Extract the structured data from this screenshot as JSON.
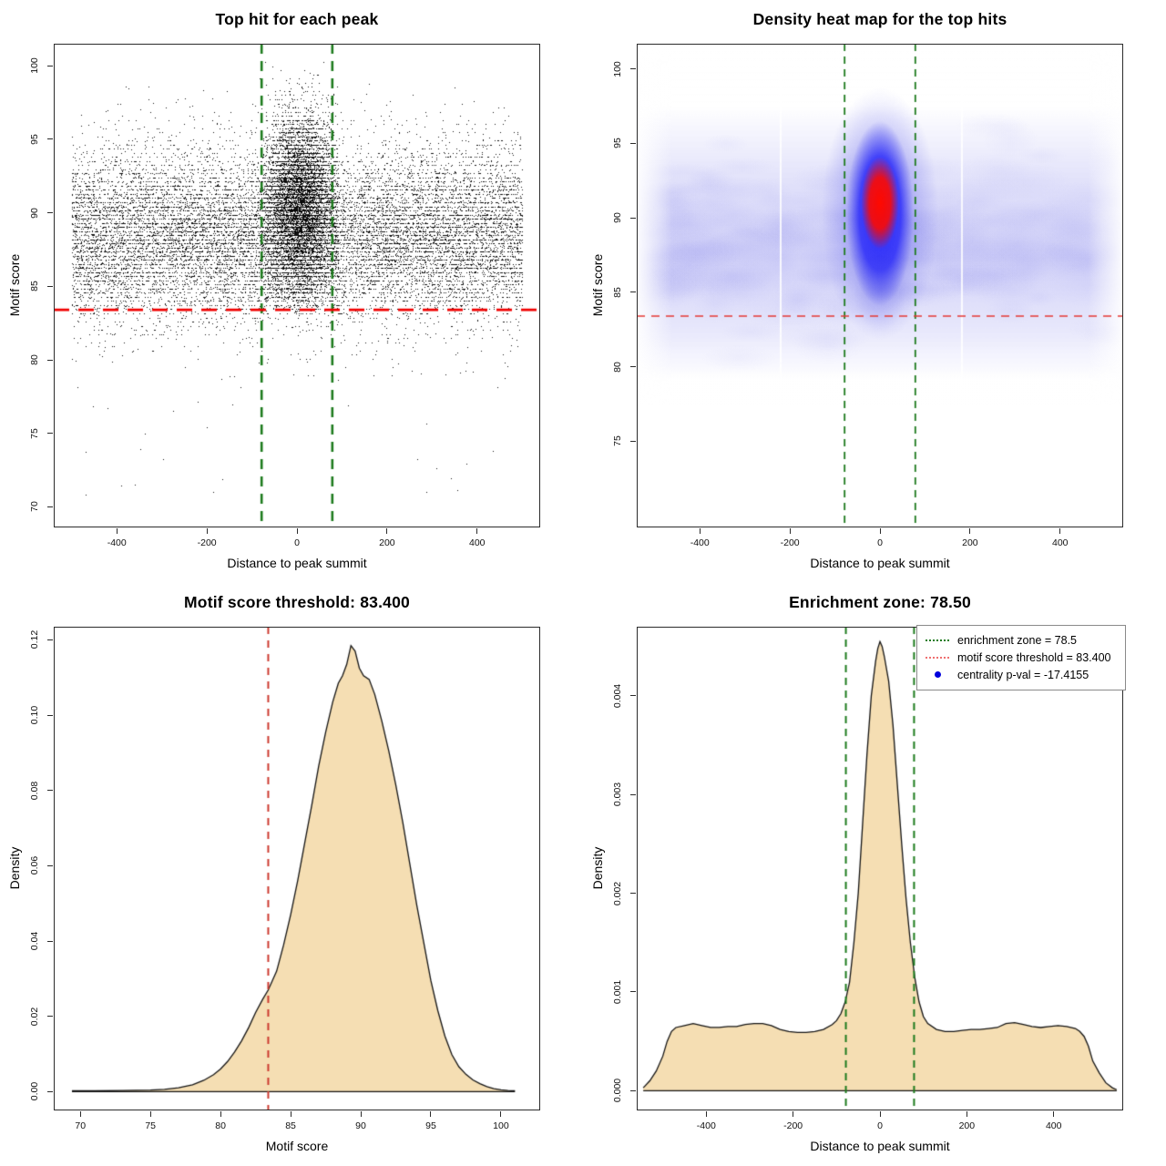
{
  "figure": {
    "background": "#ffffff",
    "frame_color": "#2b2b2b"
  },
  "colors": {
    "enrichment_green": "#1e7b1e",
    "threshold_red_bold": "#f00000",
    "threshold_red_soft": "#cc3a30",
    "heatmap_red_line": "#e53935",
    "density_fill_wheat": "#f5deb3",
    "density_stroke": "#141414",
    "scatter_point": "#000000",
    "heat_core_red": "#ff0a00",
    "heat_blue": "#2323fa",
    "legend_green": "#1e7b1e",
    "legend_salmon": "#ef7070",
    "legend_blue": "#0000dd"
  },
  "chart_data": [
    {
      "id": "top-hit-scatter",
      "type": "scatter",
      "title": "Top hit for each peak",
      "xlabel": "Distance to peak summit",
      "ylabel": "Motif score",
      "xlim": [
        -540,
        540
      ],
      "ylim": [
        68.6,
        101.5
      ],
      "xticks": {
        "values": [
          -400,
          -200,
          0,
          200,
          400
        ],
        "labels": [
          "-400",
          "-200",
          "0",
          "200",
          "400"
        ]
      },
      "yticks": {
        "values": [
          70,
          75,
          80,
          85,
          90,
          95,
          100
        ],
        "labels": [
          "70",
          "75",
          "80",
          "85",
          "90",
          "95",
          "100"
        ]
      },
      "grid": false,
      "hlines": [
        {
          "value": 83.4,
          "color": "#f00000",
          "width": 2.8,
          "dash": [
            17,
            10
          ],
          "meaning": "motif score threshold"
        }
      ],
      "vlines": [
        {
          "value": -78.5,
          "color": "#1e7b1e",
          "width": 2.6,
          "dash": [
            11,
            8
          ],
          "meaning": "enrichment zone"
        },
        {
          "value": 78.5,
          "color": "#1e7b1e",
          "width": 2.6,
          "dash": [
            11,
            8
          ],
          "meaning": "enrichment zone"
        }
      ],
      "point_cloud": {
        "background": {
          "n": 15500,
          "x_uniform": [
            -500,
            500
          ],
          "y_mean": 88.35,
          "y_sd": 3.05
        },
        "central_cluster": {
          "n": 8200,
          "x_mean": 5,
          "x_sd": 41,
          "x_clip": 85,
          "y_mean": 90.2,
          "y_sd": 3.1,
          "y_min": 83.0,
          "y_max": 100.3
        },
        "core": {
          "n": 2600,
          "x_mean": 8,
          "x_sd": 26,
          "y_mean": 90.6,
          "y_sd": 2.1
        },
        "low_outliers": {
          "n": 24,
          "x_uniform": [
            -470,
            470
          ],
          "y_uniform": [
            70.3,
            77.5
          ]
        },
        "score_band_quantum": 0.28
      }
    },
    {
      "id": "top-hit-density-heatmap",
      "type": "heatmap",
      "title": "Density heat map for the top hits",
      "xlabel": "Distance to peak summit",
      "ylabel": "Motif score",
      "xlim": [
        -540,
        540
      ],
      "ylim": [
        69.2,
        101.7
      ],
      "xticks": {
        "values": [
          -400,
          -200,
          0,
          200,
          400
        ],
        "labels": [
          "-400",
          "-200",
          "0",
          "200",
          "400"
        ]
      },
      "yticks": {
        "values": [
          75,
          80,
          85,
          90,
          95,
          100
        ],
        "labels": [
          "75",
          "80",
          "85",
          "90",
          "95",
          "100"
        ]
      },
      "grid": false,
      "hlines": [
        {
          "value": 83.4,
          "color": "#e53935",
          "width": 1.6,
          "dash": [
            9,
            7
          ],
          "meaning": "motif score threshold"
        }
      ],
      "vlines": [
        {
          "value": -78.5,
          "color": "#1e7b1e",
          "width": 1.8,
          "dash": [
            8,
            6
          ],
          "meaning": "enrichment zone"
        },
        {
          "value": 78.5,
          "color": "#1e7b1e",
          "width": 1.8,
          "dash": [
            8,
            6
          ],
          "meaning": "enrichment zone"
        }
      ],
      "heat": {
        "band": {
          "y_center": 88.3,
          "y_top": 97.5,
          "y_bottom": 79.0,
          "max_alpha": 0.42
        },
        "halo": {
          "x": 0,
          "y": 90.3,
          "rx_units": 130,
          "ry_units": 8.5
        },
        "blue_blob": {
          "x": 0,
          "y": 90.3,
          "rx_units": 75,
          "ry_units": 6.2
        },
        "red_core": {
          "x": 0,
          "y": 91.0,
          "rx_units": 42,
          "ry_units": 3.1
        },
        "white_streaks_x": [
          -222,
          180
        ]
      }
    },
    {
      "id": "motif-score-density",
      "type": "area",
      "title": "Motif score threshold: 83.400",
      "xlabel": "Motif score",
      "ylabel": "Density",
      "xlim": [
        68.1,
        102.8
      ],
      "ylim": [
        -0.005,
        0.1235
      ],
      "xticks": {
        "values": [
          70,
          75,
          80,
          85,
          90,
          95,
          100
        ],
        "labels": [
          "70",
          "75",
          "80",
          "85",
          "90",
          "95",
          "100"
        ]
      },
      "yticks": {
        "values": [
          0.0,
          0.02,
          0.04,
          0.06,
          0.08,
          0.1,
          0.12
        ],
        "labels": [
          "0.00",
          "0.02",
          "0.04",
          "0.06",
          "0.08",
          "0.10",
          "0.12"
        ]
      },
      "grid": false,
      "vlines": [
        {
          "value": 83.4,
          "color": "#cc3a30",
          "width": 2.0,
          "dash": [
            8,
            7
          ],
          "meaning": "motif score threshold"
        }
      ],
      "curve": [
        [
          69.4,
          0.0002
        ],
        [
          71,
          0.0002
        ],
        [
          73,
          0.0003
        ],
        [
          75,
          0.0004
        ],
        [
          76,
          0.0006
        ],
        [
          77,
          0.001
        ],
        [
          78,
          0.0018
        ],
        [
          78.8,
          0.003
        ],
        [
          79.5,
          0.0045
        ],
        [
          80,
          0.006
        ],
        [
          80.5,
          0.008
        ],
        [
          81,
          0.0105
        ],
        [
          81.5,
          0.0135
        ],
        [
          82,
          0.017
        ],
        [
          82.5,
          0.021
        ],
        [
          83,
          0.0245
        ],
        [
          83.4,
          0.027
        ],
        [
          84,
          0.032
        ],
        [
          84.5,
          0.039
        ],
        [
          85,
          0.047
        ],
        [
          85.5,
          0.056
        ],
        [
          86,
          0.066
        ],
        [
          86.5,
          0.076
        ],
        [
          87,
          0.0865
        ],
        [
          87.5,
          0.0955
        ],
        [
          88,
          0.1035
        ],
        [
          88.4,
          0.1085
        ],
        [
          88.7,
          0.1105
        ],
        [
          89,
          0.1135
        ],
        [
          89.3,
          0.1185
        ],
        [
          89.6,
          0.117
        ],
        [
          89.9,
          0.1125
        ],
        [
          90.2,
          0.1105
        ],
        [
          90.6,
          0.1095
        ],
        [
          91,
          0.1055
        ],
        [
          91.5,
          0.0985
        ],
        [
          92,
          0.0905
        ],
        [
          92.5,
          0.0815
        ],
        [
          93,
          0.0715
        ],
        [
          93.5,
          0.0605
        ],
        [
          94,
          0.0495
        ],
        [
          94.5,
          0.0395
        ],
        [
          95,
          0.0295
        ],
        [
          95.5,
          0.0215
        ],
        [
          96,
          0.0148
        ],
        [
          96.5,
          0.0098
        ],
        [
          97,
          0.0066
        ],
        [
          97.5,
          0.0046
        ],
        [
          98,
          0.0031
        ],
        [
          98.5,
          0.0021
        ],
        [
          99,
          0.0013
        ],
        [
          99.5,
          0.0008
        ],
        [
          100,
          0.0005
        ],
        [
          100.5,
          0.0003
        ],
        [
          101,
          0.0002
        ]
      ]
    },
    {
      "id": "distance-density",
      "type": "area",
      "title": "Enrichment zone: 78.50",
      "xlabel": "Distance to peak summit",
      "ylabel": "Density",
      "xlim": [
        -560,
        560
      ],
      "ylim": [
        -0.0002,
        0.0047
      ],
      "xticks": {
        "values": [
          -400,
          -200,
          0,
          200,
          400
        ],
        "labels": [
          "-400",
          "-200",
          "0",
          "200",
          "400"
        ]
      },
      "yticks": {
        "values": [
          0.0,
          0.001,
          0.002,
          0.003,
          0.004
        ],
        "labels": [
          "0.000",
          "0.001",
          "0.002",
          "0.003",
          "0.004"
        ]
      },
      "grid": false,
      "vlines": [
        {
          "value": -78.5,
          "color": "#1e7b1e",
          "width": 2.0,
          "dash": [
            8,
            6
          ],
          "meaning": "enrichment zone"
        },
        {
          "value": 78.5,
          "color": "#1e7b1e",
          "width": 2.0,
          "dash": [
            8,
            6
          ],
          "meaning": "enrichment zone"
        }
      ],
      "curve": [
        [
          -545,
          3e-05
        ],
        [
          -530,
          0.0001
        ],
        [
          -515,
          0.0002
        ],
        [
          -500,
          0.00035
        ],
        [
          -490,
          0.0005
        ],
        [
          -480,
          0.0006
        ],
        [
          -470,
          0.00064
        ],
        [
          -450,
          0.00066
        ],
        [
          -430,
          0.00068
        ],
        [
          -410,
          0.00066
        ],
        [
          -390,
          0.00064
        ],
        [
          -370,
          0.00064
        ],
        [
          -350,
          0.00065
        ],
        [
          -330,
          0.00065
        ],
        [
          -310,
          0.00067
        ],
        [
          -290,
          0.00068
        ],
        [
          -270,
          0.00068
        ],
        [
          -250,
          0.00066
        ],
        [
          -230,
          0.00062
        ],
        [
          -210,
          0.0006
        ],
        [
          -190,
          0.00059
        ],
        [
          -170,
          0.00059
        ],
        [
          -150,
          0.0006
        ],
        [
          -130,
          0.00062
        ],
        [
          -110,
          0.00067
        ],
        [
          -100,
          0.00071
        ],
        [
          -90,
          0.00078
        ],
        [
          -80,
          0.0009
        ],
        [
          -70,
          0.0011
        ],
        [
          -60,
          0.0015
        ],
        [
          -50,
          0.002
        ],
        [
          -40,
          0.0027
        ],
        [
          -30,
          0.0034
        ],
        [
          -20,
          0.004
        ],
        [
          -10,
          0.00435
        ],
        [
          -5,
          0.00448
        ],
        [
          0,
          0.00455
        ],
        [
          5,
          0.0045
        ],
        [
          10,
          0.0044
        ],
        [
          20,
          0.00415
        ],
        [
          30,
          0.0037
        ],
        [
          40,
          0.0031
        ],
        [
          50,
          0.0025
        ],
        [
          60,
          0.00195
        ],
        [
          70,
          0.0015
        ],
        [
          80,
          0.00115
        ],
        [
          90,
          0.0009
        ],
        [
          100,
          0.00075
        ],
        [
          110,
          0.00068
        ],
        [
          130,
          0.00062
        ],
        [
          150,
          0.0006
        ],
        [
          170,
          0.0006
        ],
        [
          190,
          0.00061
        ],
        [
          210,
          0.00062
        ],
        [
          230,
          0.00062
        ],
        [
          250,
          0.00063
        ],
        [
          270,
          0.00064
        ],
        [
          290,
          0.00068
        ],
        [
          310,
          0.00069
        ],
        [
          330,
          0.00067
        ],
        [
          350,
          0.00065
        ],
        [
          370,
          0.00064
        ],
        [
          390,
          0.00065
        ],
        [
          410,
          0.00066
        ],
        [
          430,
          0.00065
        ],
        [
          450,
          0.00063
        ],
        [
          460,
          0.0006
        ],
        [
          470,
          0.00055
        ],
        [
          480,
          0.00045
        ],
        [
          490,
          0.0003
        ],
        [
          505,
          0.00018
        ],
        [
          520,
          8e-05
        ],
        [
          535,
          3e-05
        ],
        [
          545,
          1e-05
        ]
      ],
      "legend": {
        "entries": [
          {
            "label": "enrichment zone = 78.5",
            "symbol": "dotted-line",
            "color": "#1e7b1e"
          },
          {
            "label": "motif score threshold = 83.400",
            "symbol": "dotted-line",
            "color": "#ef7070"
          },
          {
            "label": "centrality p-val = -17.4155",
            "symbol": "dot",
            "color": "#0000dd"
          }
        ]
      }
    }
  ]
}
